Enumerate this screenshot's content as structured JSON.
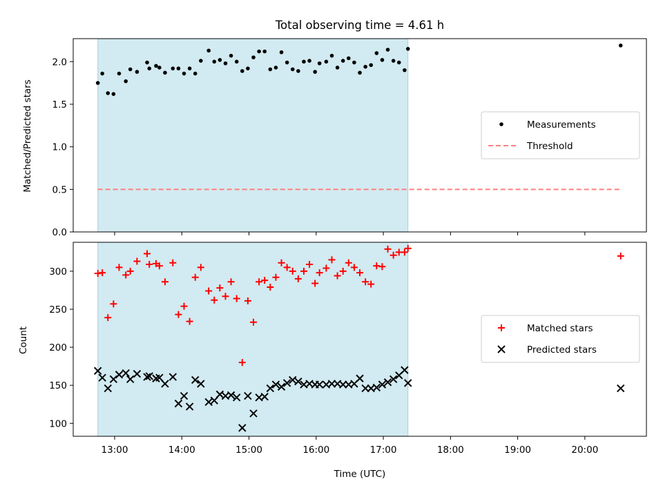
{
  "chart_data": [
    {
      "type": "scatter",
      "title": "Total observing time = 4.61 h",
      "xlabel": "",
      "ylabel": "Matched/Predicted stars",
      "ylim": [
        0,
        2.27
      ],
      "yticks": [
        "0.0",
        "0.5",
        "1.0",
        "1.5",
        "2.0"
      ],
      "xlim": [
        "12:23",
        "20:55"
      ],
      "shaded_interval": [
        "12:45",
        "17:22"
      ],
      "shade_color": "#add8e6",
      "grid": false,
      "legend_position": "center-right",
      "legend": [
        {
          "label": "Measurements",
          "marker": "dot",
          "color": "#000000"
        },
        {
          "label": "Threshold",
          "marker": "dashed-line",
          "color": "#ff7f7f"
        }
      ],
      "threshold": {
        "value": 0.5,
        "x_range": [
          "12:45",
          "20:32"
        ],
        "color": "#ff7f7f"
      },
      "series": [
        {
          "name": "Measurements",
          "color": "#000000",
          "points": [
            [
              "12:45",
              1.75
            ],
            [
              "12:49",
              1.86
            ],
            [
              "12:54",
              1.63
            ],
            [
              "12:59",
              1.62
            ],
            [
              "13:04",
              1.86
            ],
            [
              "13:10",
              1.77
            ],
            [
              "13:14",
              1.91
            ],
            [
              "13:20",
              1.88
            ],
            [
              "13:29",
              1.99
            ],
            [
              "13:31",
              1.92
            ],
            [
              "13:37",
              1.95
            ],
            [
              "13:40",
              1.93
            ],
            [
              "13:45",
              1.87
            ],
            [
              "13:52",
              1.92
            ],
            [
              "13:57",
              1.92
            ],
            [
              "14:02",
              1.86
            ],
            [
              "14:07",
              1.92
            ],
            [
              "14:12",
              1.86
            ],
            [
              "14:17",
              2.01
            ],
            [
              "14:24",
              2.13
            ],
            [
              "14:29",
              2.0
            ],
            [
              "14:34",
              2.02
            ],
            [
              "14:39",
              1.98
            ],
            [
              "14:44",
              2.07
            ],
            [
              "14:49",
              2.0
            ],
            [
              "14:54",
              1.89
            ],
            [
              "14:59",
              1.92
            ],
            [
              "15:04",
              2.05
            ],
            [
              "15:09",
              2.12
            ],
            [
              "15:14",
              2.12
            ],
            [
              "15:19",
              1.91
            ],
            [
              "15:24",
              1.93
            ],
            [
              "15:29",
              2.11
            ],
            [
              "15:34",
              1.99
            ],
            [
              "15:39",
              1.91
            ],
            [
              "15:44",
              1.89
            ],
            [
              "15:49",
              2.0
            ],
            [
              "15:54",
              2.01
            ],
            [
              "15:59",
              1.88
            ],
            [
              "16:03",
              1.98
            ],
            [
              "16:09",
              2.0
            ],
            [
              "16:14",
              2.07
            ],
            [
              "16:19",
              1.93
            ],
            [
              "16:24",
              2.01
            ],
            [
              "16:29",
              2.04
            ],
            [
              "16:34",
              1.99
            ],
            [
              "16:39",
              1.87
            ],
            [
              "16:44",
              1.94
            ],
            [
              "16:49",
              1.96
            ],
            [
              "16:54",
              2.1
            ],
            [
              "16:59",
              2.02
            ],
            [
              "17:04",
              2.14
            ],
            [
              "17:09",
              2.01
            ],
            [
              "17:14",
              1.99
            ],
            [
              "17:19",
              1.9
            ],
            [
              "17:22",
              2.15
            ],
            [
              "20:32",
              2.19
            ]
          ]
        }
      ]
    },
    {
      "type": "scatter",
      "title": "",
      "xlabel": "Time (UTC)",
      "ylabel": "Count",
      "ylim": [
        83,
        338
      ],
      "yticks": [
        "100",
        "150",
        "200",
        "250",
        "300"
      ],
      "xlim": [
        "12:23",
        "20:55"
      ],
      "xticks": [
        "13:00",
        "14:00",
        "15:00",
        "16:00",
        "17:00",
        "18:00",
        "19:00",
        "20:00"
      ],
      "shaded_interval": [
        "12:45",
        "17:22"
      ],
      "shade_color": "#add8e6",
      "grid": false,
      "legend_position": "center-right",
      "legend": [
        {
          "label": "Matched stars",
          "marker": "plus",
          "color": "#ff0000"
        },
        {
          "label": "Predicted stars",
          "marker": "x",
          "color": "#000000"
        }
      ],
      "series": [
        {
          "name": "Matched stars",
          "marker": "plus",
          "color": "#ff0000",
          "points": [
            [
              "12:45",
              297
            ],
            [
              "12:49",
              298
            ],
            [
              "12:54",
              239
            ],
            [
              "12:59",
              257
            ],
            [
              "13:04",
              305
            ],
            [
              "13:10",
              295
            ],
            [
              "13:14",
              300
            ],
            [
              "13:20",
              313
            ],
            [
              "13:29",
              323
            ],
            [
              "13:31",
              309
            ],
            [
              "13:37",
              310
            ],
            [
              "13:40",
              307
            ],
            [
              "13:45",
              286
            ],
            [
              "13:52",
              311
            ],
            [
              "13:57",
              243
            ],
            [
              "14:02",
              254
            ],
            [
              "14:07",
              234
            ],
            [
              "14:12",
              292
            ],
            [
              "14:17",
              305
            ],
            [
              "14:24",
              274
            ],
            [
              "14:29",
              262
            ],
            [
              "14:34",
              278
            ],
            [
              "14:39",
              267
            ],
            [
              "14:44",
              286
            ],
            [
              "14:49",
              264
            ],
            [
              "14:54",
              180
            ],
            [
              "14:59",
              261
            ],
            [
              "15:04",
              233
            ],
            [
              "15:09",
              286
            ],
            [
              "15:14",
              288
            ],
            [
              "15:19",
              279
            ],
            [
              "15:24",
              292
            ],
            [
              "15:29",
              311
            ],
            [
              "15:34",
              305
            ],
            [
              "15:39",
              300
            ],
            [
              "15:44",
              290
            ],
            [
              "15:49",
              300
            ],
            [
              "15:54",
              309
            ],
            [
              "15:59",
              284
            ],
            [
              "16:03",
              298
            ],
            [
              "16:09",
              304
            ],
            [
              "16:14",
              315
            ],
            [
              "16:19",
              294
            ],
            [
              "16:24",
              300
            ],
            [
              "16:29",
              311
            ],
            [
              "16:34",
              305
            ],
            [
              "16:39",
              298
            ],
            [
              "16:44",
              286
            ],
            [
              "16:49",
              283
            ],
            [
              "16:54",
              307
            ],
            [
              "16:59",
              306
            ],
            [
              "17:04",
              329
            ],
            [
              "17:09",
              321
            ],
            [
              "17:14",
              325
            ],
            [
              "17:19",
              325
            ],
            [
              "17:22",
              330
            ],
            [
              "20:32",
              320
            ]
          ]
        },
        {
          "name": "Predicted stars",
          "marker": "x",
          "color": "#000000",
          "points": [
            [
              "12:45",
              169
            ],
            [
              "12:49",
              160
            ],
            [
              "12:54",
              146
            ],
            [
              "12:59",
              158
            ],
            [
              "13:04",
              164
            ],
            [
              "13:10",
              166
            ],
            [
              "13:14",
              158
            ],
            [
              "13:20",
              165
            ],
            [
              "13:29",
              161
            ],
            [
              "13:31",
              162
            ],
            [
              "13:37",
              159
            ],
            [
              "13:40",
              160
            ],
            [
              "13:45",
              152
            ],
            [
              "13:52",
              161
            ],
            [
              "13:57",
              126
            ],
            [
              "14:02",
              136
            ],
            [
              "14:07",
              122
            ],
            [
              "14:12",
              157
            ],
            [
              "14:17",
              152
            ],
            [
              "14:24",
              128
            ],
            [
              "14:29",
              130
            ],
            [
              "14:34",
              138
            ],
            [
              "14:39",
              136
            ],
            [
              "14:44",
              137
            ],
            [
              "14:49",
              134
            ],
            [
              "14:54",
              94
            ],
            [
              "14:59",
              136
            ],
            [
              "15:04",
              113
            ],
            [
              "15:09",
              134
            ],
            [
              "15:14",
              135
            ],
            [
              "15:19",
              146
            ],
            [
              "15:24",
              151
            ],
            [
              "15:29",
              148
            ],
            [
              "15:34",
              153
            ],
            [
              "15:39",
              157
            ],
            [
              "15:44",
              155
            ],
            [
              "15:49",
              151
            ],
            [
              "15:54",
              152
            ],
            [
              "15:59",
              151
            ],
            [
              "16:03",
              151
            ],
            [
              "16:09",
              151
            ],
            [
              "16:14",
              152
            ],
            [
              "16:19",
              152
            ],
            [
              "16:24",
              151
            ],
            [
              "16:29",
              151
            ],
            [
              "16:34",
              152
            ],
            [
              "16:39",
              159
            ],
            [
              "16:44",
              146
            ],
            [
              "16:49",
              146
            ],
            [
              "16:54",
              147
            ],
            [
              "16:59",
              151
            ],
            [
              "17:04",
              154
            ],
            [
              "17:09",
              158
            ],
            [
              "17:14",
              163
            ],
            [
              "17:19",
              170
            ],
            [
              "17:22",
              153
            ],
            [
              "20:32",
              146
            ]
          ]
        }
      ]
    }
  ]
}
